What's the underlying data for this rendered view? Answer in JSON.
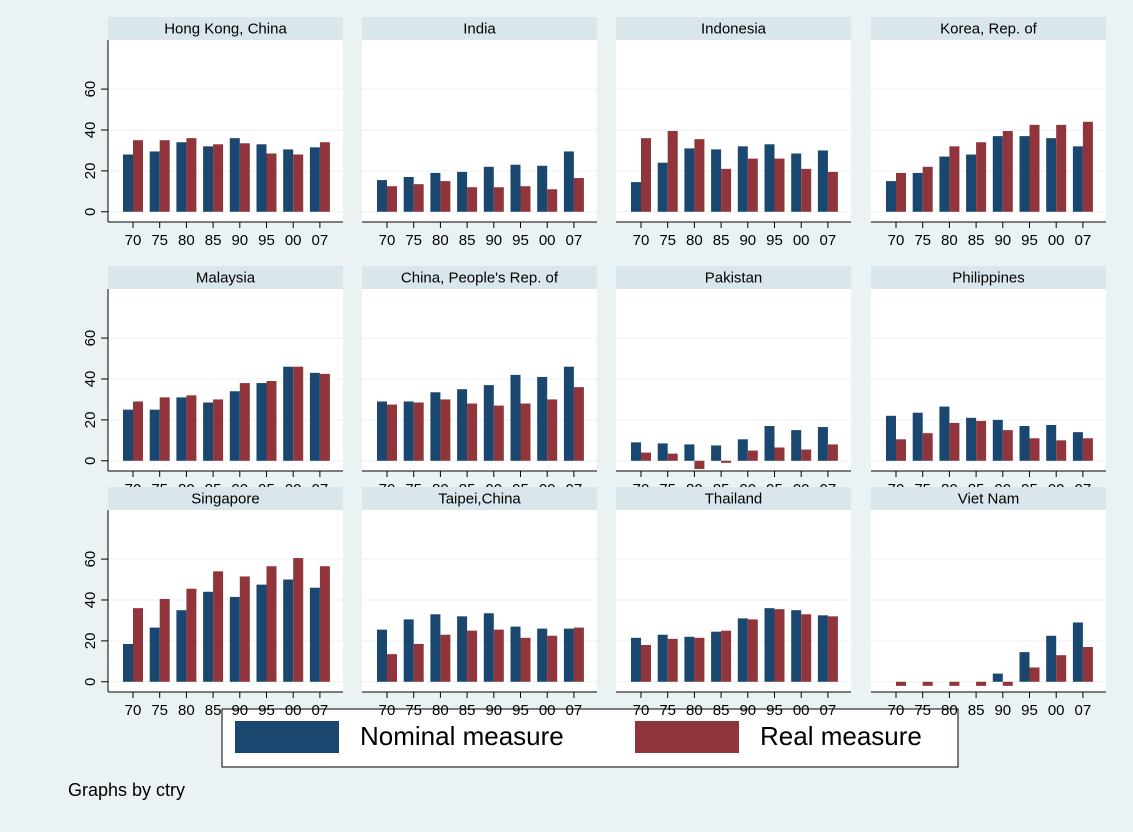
{
  "chart_data": {
    "type": "bar",
    "categories": [
      "70",
      "75",
      "80",
      "85",
      "90",
      "95",
      "00",
      "07"
    ],
    "ylim": [
      -5,
      84
    ],
    "yticks": [
      0,
      20,
      40,
      60
    ],
    "grid": true,
    "legend": "bottom",
    "note": "Graphs by ctry",
    "series": [
      {
        "name": "Nominal measure",
        "color": "#1a476f"
      },
      {
        "name": "Real measure",
        "color": "#90353b"
      }
    ],
    "panels": [
      {
        "title": "Hong Kong, China",
        "values": [
          [
            28,
            29.5,
            34,
            32,
            36,
            33,
            30.5,
            31.5
          ],
          [
            35,
            35,
            36,
            33,
            33.5,
            28.5,
            28,
            34
          ]
        ]
      },
      {
        "title": "India",
        "values": [
          [
            15.5,
            17,
            19,
            19.5,
            22,
            23,
            22.5,
            29.5
          ],
          [
            12.5,
            13.5,
            15,
            12,
            12,
            12.5,
            11,
            16.5
          ]
        ]
      },
      {
        "title": "Indonesia",
        "values": [
          [
            14.5,
            24,
            31,
            30.5,
            32,
            33,
            28.5,
            30
          ],
          [
            36,
            39.5,
            35.5,
            21,
            26,
            26,
            21,
            19.5
          ]
        ]
      },
      {
        "title": "Korea, Rep. of",
        "values": [
          [
            15,
            19,
            27,
            28,
            37,
            37,
            36,
            32
          ],
          [
            19,
            22,
            32,
            34,
            39.5,
            42.5,
            42.5,
            44
          ]
        ]
      },
      {
        "title": "Malaysia",
        "values": [
          [
            25,
            25,
            31,
            28.5,
            34,
            38,
            46,
            43
          ],
          [
            29,
            31,
            32,
            30,
            38,
            39,
            46,
            42.5
          ]
        ]
      },
      {
        "title": "China, People's Rep. of",
        "values": [
          [
            29,
            29,
            33.5,
            35,
            37,
            42,
            41,
            46
          ],
          [
            27.5,
            28.5,
            30,
            28,
            27,
            28,
            30,
            36
          ]
        ]
      },
      {
        "title": "Pakistan",
        "values": [
          [
            9,
            8.5,
            8,
            7.5,
            10.5,
            17,
            15,
            16.5
          ],
          [
            4,
            3.5,
            -4,
            -1,
            5,
            6.5,
            5.5,
            8
          ]
        ]
      },
      {
        "title": "Philippines",
        "values": [
          [
            22,
            23.5,
            26.5,
            21,
            20,
            17,
            17.5,
            14
          ],
          [
            10.5,
            13.5,
            18.5,
            19.5,
            15,
            11,
            10,
            11
          ]
        ]
      },
      {
        "title": "Singapore",
        "values": [
          [
            18.5,
            26.5,
            35,
            44,
            41.5,
            47.5,
            50,
            46
          ],
          [
            36,
            40.5,
            45.5,
            54,
            51.5,
            56.5,
            60.5,
            56.5
          ]
        ]
      },
      {
        "title": "Taipei,China",
        "values": [
          [
            25.5,
            30.5,
            33,
            32,
            33.5,
            27,
            26,
            26
          ],
          [
            13.5,
            18.5,
            23,
            25,
            25.5,
            21.5,
            22.5,
            26.5
          ]
        ]
      },
      {
        "title": "Thailand",
        "values": [
          [
            21.5,
            23,
            22,
            24.5,
            31,
            36,
            35,
            32.5
          ],
          [
            18,
            21,
            21.5,
            25,
            30.5,
            35.5,
            33,
            32
          ]
        ]
      },
      {
        "title": "Viet Nam",
        "values": [
          [
            null,
            null,
            null,
            null,
            4,
            14.5,
            22.5,
            29
          ],
          [
            -2,
            -2,
            -2,
            -2,
            -2,
            7,
            13,
            17
          ]
        ]
      }
    ]
  }
}
